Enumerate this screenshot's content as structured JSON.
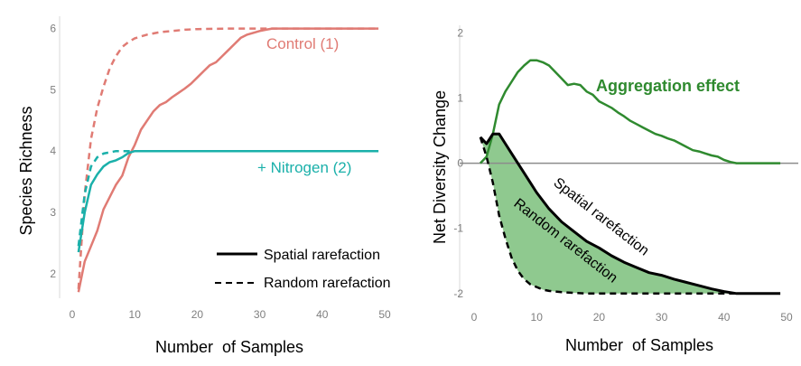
{
  "colors": {
    "control": "#e07b74",
    "nitrogen": "#1ab0aa",
    "aggregation": "#2f8a2f",
    "fill": "#8fc98f",
    "black": "#000000",
    "zero_line": "#8c8c8c",
    "tick_text": "#7f7f7f"
  },
  "chart_data": [
    {
      "type": "line",
      "xlabel": "Number  of Samples",
      "ylabel": "Species Richness",
      "xlim": [
        0,
        50
      ],
      "ylim": [
        1.6,
        6.2
      ],
      "xticks": [
        "0",
        "10",
        "20",
        "30",
        "40",
        "50"
      ],
      "yticks": [
        "2",
        "3",
        "4",
        "5",
        "6"
      ],
      "grid": false,
      "legend": {
        "placement": "bottom-right",
        "entries": [
          {
            "label": "Spatial rarefaction",
            "style": "solid"
          },
          {
            "label": "Random rarefaction",
            "style": "dashed"
          }
        ]
      },
      "annotations": [
        {
          "text": "Control (1)",
          "color": "control"
        },
        {
          "text": "+ Nitrogen (2)",
          "color": "nitrogen"
        }
      ],
      "series": [
        {
          "name": "Control (1)",
          "style": "solid",
          "color": "control",
          "x": [
            1,
            2,
            3,
            4,
            5,
            6,
            7,
            8,
            9,
            10,
            11,
            12,
            13,
            14,
            15,
            16,
            17,
            18,
            19,
            20,
            21,
            22,
            23,
            24,
            25,
            26,
            27,
            28,
            29,
            30,
            31,
            32,
            33,
            49
          ],
          "y": [
            1.7,
            2.2,
            2.45,
            2.7,
            3.05,
            3.25,
            3.45,
            3.6,
            3.9,
            4.1,
            4.35,
            4.5,
            4.65,
            4.75,
            4.8,
            4.88,
            4.95,
            5.02,
            5.1,
            5.2,
            5.3,
            5.4,
            5.45,
            5.55,
            5.65,
            5.75,
            5.85,
            5.9,
            5.93,
            5.96,
            5.98,
            6.0,
            6.0,
            6.0
          ]
        },
        {
          "name": "Control (1)",
          "style": "dashed",
          "color": "control",
          "x": [
            1,
            2,
            3,
            4,
            5,
            6,
            7,
            8,
            9,
            10,
            12,
            14,
            16,
            18,
            20,
            25,
            30,
            32,
            49
          ],
          "y": [
            1.75,
            3.3,
            4.2,
            4.7,
            5.05,
            5.35,
            5.55,
            5.7,
            5.78,
            5.84,
            5.9,
            5.94,
            5.96,
            5.98,
            5.99,
            6.0,
            6.0,
            6.0,
            6.0
          ]
        },
        {
          "name": "+ Nitrogen (2)",
          "style": "solid",
          "color": "nitrogen",
          "x": [
            1,
            2,
            3,
            4,
            5,
            6,
            7,
            8,
            9,
            10,
            12,
            15,
            20,
            30,
            40,
            49
          ],
          "y": [
            2.35,
            3.0,
            3.45,
            3.62,
            3.75,
            3.82,
            3.85,
            3.9,
            3.97,
            4.0,
            4.0,
            4.0,
            4.0,
            4.0,
            4.0,
            4.0
          ]
        },
        {
          "name": "+ Nitrogen (2)",
          "style": "dashed",
          "color": "nitrogen",
          "x": [
            1,
            2,
            3,
            4,
            5,
            6,
            7,
            8,
            9,
            10
          ],
          "y": [
            2.45,
            3.3,
            3.75,
            3.9,
            3.96,
            3.98,
            4.0,
            4.0,
            4.0,
            4.0
          ]
        }
      ]
    },
    {
      "type": "area",
      "xlabel": "Number  of Samples",
      "ylabel": "Net Diversity Change",
      "xlim": [
        0,
        50
      ],
      "ylim": [
        -2.1,
        2.2
      ],
      "xticks": [
        "0",
        "10",
        "20",
        "30",
        "40",
        "50"
      ],
      "yticks": [
        "2",
        "1",
        "0",
        "-1",
        "-2"
      ],
      "grid": false,
      "reference_line": 0,
      "annotations": [
        {
          "text": "Aggregation effect",
          "color": "aggregation"
        },
        {
          "text": "Spatial rarefaction",
          "color": "black"
        },
        {
          "text": "Random rarefaction",
          "color": "black"
        }
      ],
      "series": [
        {
          "name": "Aggregation effect",
          "style": "solid",
          "color": "aggregation",
          "x": [
            1,
            2,
            3,
            4,
            5,
            6,
            7,
            8,
            9,
            10,
            11,
            12,
            13,
            14,
            15,
            16,
            17,
            18,
            19,
            20,
            21,
            22,
            23,
            24,
            25,
            26,
            27,
            28,
            29,
            30,
            31,
            32,
            33,
            34,
            35,
            36,
            37,
            38,
            39,
            40,
            41,
            42,
            49
          ],
          "y": [
            0.0,
            0.1,
            0.45,
            0.9,
            1.1,
            1.25,
            1.4,
            1.5,
            1.58,
            1.58,
            1.55,
            1.5,
            1.4,
            1.3,
            1.2,
            1.22,
            1.2,
            1.1,
            1.05,
            0.95,
            0.9,
            0.85,
            0.78,
            0.72,
            0.65,
            0.6,
            0.55,
            0.5,
            0.45,
            0.42,
            0.38,
            0.35,
            0.3,
            0.25,
            0.2,
            0.18,
            0.15,
            0.12,
            0.1,
            0.05,
            0.02,
            0.0,
            0.0
          ]
        },
        {
          "name": "Spatial rarefaction",
          "style": "solid",
          "color": "black",
          "x": [
            1,
            2,
            3,
            4,
            5,
            6,
            7,
            8,
            9,
            10,
            12,
            14,
            16,
            18,
            20,
            22,
            24,
            26,
            28,
            30,
            32,
            34,
            36,
            38,
            40,
            42,
            49
          ],
          "y": [
            0.4,
            0.3,
            0.45,
            0.45,
            0.3,
            0.15,
            0.0,
            -0.15,
            -0.3,
            -0.45,
            -0.7,
            -0.9,
            -1.05,
            -1.2,
            -1.3,
            -1.42,
            -1.52,
            -1.6,
            -1.68,
            -1.72,
            -1.78,
            -1.83,
            -1.88,
            -1.93,
            -1.97,
            -2.0,
            -2.0
          ]
        },
        {
          "name": "Random rarefaction",
          "style": "dashed",
          "color": "black",
          "x": [
            1,
            2,
            3,
            4,
            5,
            6,
            7,
            8,
            9,
            10,
            11,
            12,
            14,
            16,
            18,
            20,
            25,
            30,
            35,
            42,
            49
          ],
          "y": [
            0.4,
            0.1,
            -0.3,
            -0.8,
            -1.15,
            -1.45,
            -1.65,
            -1.78,
            -1.86,
            -1.9,
            -1.94,
            -1.96,
            -1.98,
            -1.99,
            -2.0,
            -2.0,
            -2.0,
            -2.0,
            -2.0,
            -2.0,
            -2.0
          ]
        }
      ],
      "filled_region": "between Spatial rarefaction and Random rarefaction"
    }
  ]
}
